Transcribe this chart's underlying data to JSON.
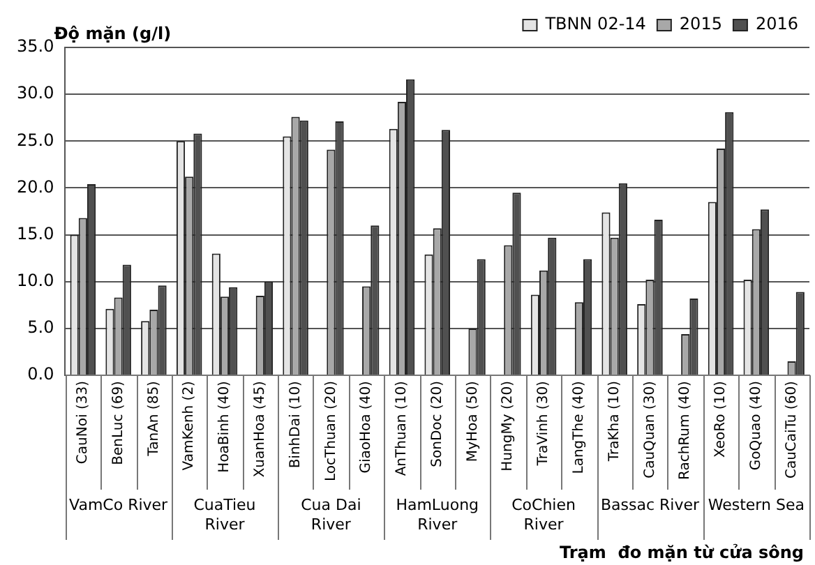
{
  "chart_data": {
    "type": "bar",
    "xlabel": "Trạm  đo mặn từ cửa sông",
    "ylabel": "Độ mặn (g/l)",
    "categories": [
      "CauNoi (33)",
      "BenLuc (69)",
      "TanAn (85)",
      "VamKenh (2)",
      "HoaBinh (40)",
      "XuanHoa (45)",
      "BinhDai (10)",
      "LocThuan (20)",
      "GiaoHoa (40)",
      "AnThuan (10)",
      "SonDoc (20)",
      "MyHoa (50)",
      "HungMy (20)",
      "TraVinh (30)",
      "LangThe (40)",
      "TraKha (10)",
      "CauQuan (30)",
      "RachRum (40)",
      "XeoRo (10)",
      "GoQuao (40)",
      "CauCaiTu (60)"
    ],
    "series": [
      {
        "name": "TBNN 02-14",
        "color": "#e4e4e4",
        "values": [
          15.0,
          7.1,
          5.8,
          25.0,
          13.0,
          null,
          25.5,
          null,
          null,
          26.3,
          12.9,
          null,
          null,
          8.6,
          null,
          17.4,
          7.6,
          null,
          18.5,
          10.2,
          null
        ]
      },
      {
        "name": "2015",
        "color": "#a8a8a8",
        "values": [
          16.8,
          8.3,
          7.0,
          21.2,
          8.4,
          8.5,
          27.6,
          24.1,
          9.5,
          29.2,
          15.7,
          5.0,
          13.9,
          11.2,
          7.8,
          14.7,
          10.2,
          4.4,
          24.2,
          15.6,
          1.5
        ]
      },
      {
        "name": "2016",
        "color": "#505050",
        "values": [
          20.4,
          11.8,
          9.6,
          25.8,
          9.4,
          10.0,
          27.2,
          27.1,
          16.0,
          31.6,
          26.2,
          12.4,
          19.5,
          14.7,
          12.4,
          20.5,
          16.6,
          8.2,
          28.1,
          17.7,
          8.9
        ]
      }
    ],
    "ylim": [
      0,
      35
    ],
    "yticks": [
      {
        "value": 0,
        "label": "0.0"
      },
      {
        "value": 5,
        "label": "5.0"
      },
      {
        "value": 10,
        "label": "10.0"
      },
      {
        "value": 15,
        "label": "15.0"
      },
      {
        "value": 20,
        "label": "20.0"
      },
      {
        "value": 25,
        "label": "25.0"
      },
      {
        "value": 30,
        "label": "30.0"
      },
      {
        "value": 35,
        "label": "35.0"
      }
    ],
    "grid": "y",
    "legend": "top right",
    "annotations": [
      "VamCo River",
      "CuaTieu River",
      "Cua Dai River",
      "HamLuong River",
      "CoChien River",
      "Bassac River",
      "Western Sea"
    ]
  }
}
